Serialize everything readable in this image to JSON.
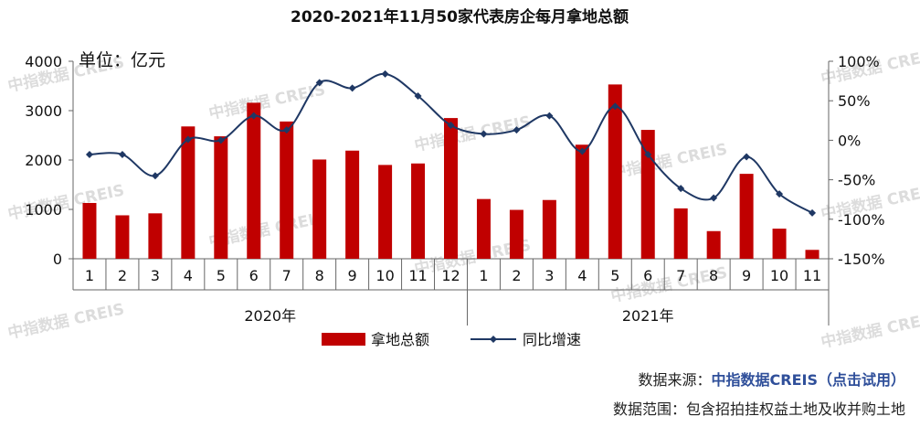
{
  "chart_data": {
    "type": "bar+line",
    "title": "2020-2021年11月50家代表房企每月拿地总额",
    "unit_label": "单位：亿元",
    "categories": [
      "1",
      "2",
      "3",
      "4",
      "5",
      "6",
      "7",
      "8",
      "9",
      "10",
      "11",
      "12",
      "1",
      "2",
      "3",
      "4",
      "5",
      "6",
      "7",
      "8",
      "9",
      "10",
      "11"
    ],
    "year_groups": [
      {
        "label": "2020年",
        "count": 12
      },
      {
        "label": "2021年",
        "count": 11
      }
    ],
    "series": [
      {
        "name": "拿地总额",
        "type": "bar",
        "axis": "left",
        "color": "#c00000",
        "values": [
          1130,
          880,
          920,
          2680,
          2480,
          3160,
          2780,
          2010,
          2190,
          1900,
          1930,
          2850,
          1210,
          990,
          1190,
          2310,
          3530,
          2610,
          1020,
          560,
          1720,
          610,
          180
        ]
      },
      {
        "name": "同比增速",
        "type": "line",
        "axis": "right",
        "color": "#1f3864",
        "values": [
          -18,
          -18,
          -45,
          1,
          0,
          31,
          13,
          73,
          66,
          84,
          56,
          19,
          8,
          13,
          31,
          -14,
          43,
          -18,
          -61,
          -73,
          -21,
          -68,
          -92
        ]
      }
    ],
    "left_axis": {
      "min": 0,
      "max": 4000,
      "ticks": [
        0,
        1000,
        2000,
        3000,
        4000
      ]
    },
    "right_axis": {
      "min": -150,
      "max": 100,
      "ticks": [
        100,
        50,
        0,
        -50,
        -100,
        -150
      ],
      "tick_labels": [
        "100%",
        "50%",
        "0%",
        "-50%",
        "-100%",
        "-150%"
      ]
    },
    "legend_position": "bottom",
    "watermark": "中指数据 CREIS"
  },
  "footer": {
    "source_label": "数据来源：",
    "source_name": "中指数据CREIS（点击试用）",
    "scope": "数据范围：包含招拍挂权益土地及收并购土地"
  }
}
